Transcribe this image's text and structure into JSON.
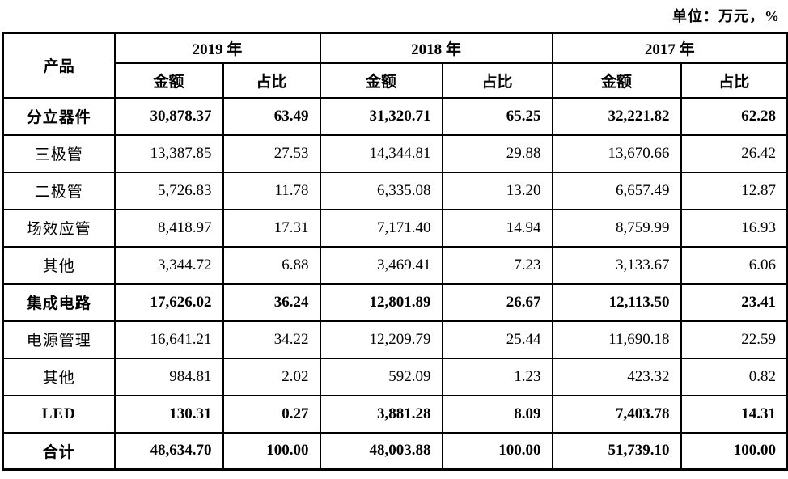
{
  "unit_note": "单位：万元，%",
  "colors": {
    "border": "#000000",
    "text": "#000000",
    "background": "#ffffff"
  },
  "table": {
    "product_header": "产品",
    "year_groups": [
      {
        "year": "2019 年",
        "amount_label": "金额",
        "ratio_label": "占比"
      },
      {
        "year": "2018 年",
        "amount_label": "金额",
        "ratio_label": "占比"
      },
      {
        "year": "2017 年",
        "amount_label": "金额",
        "ratio_label": "占比"
      }
    ],
    "rows": [
      {
        "label": "分立器件",
        "bold": true,
        "values": [
          "30,878.37",
          "63.49",
          "31,320.71",
          "65.25",
          "32,221.82",
          "62.28"
        ]
      },
      {
        "label": "三极管",
        "bold": false,
        "values": [
          "13,387.85",
          "27.53",
          "14,344.81",
          "29.88",
          "13,670.66",
          "26.42"
        ]
      },
      {
        "label": "二极管",
        "bold": false,
        "values": [
          "5,726.83",
          "11.78",
          "6,335.08",
          "13.20",
          "6,657.49",
          "12.87"
        ]
      },
      {
        "label": "场效应管",
        "bold": false,
        "values": [
          "8,418.97",
          "17.31",
          "7,171.40",
          "14.94",
          "8,759.99",
          "16.93"
        ]
      },
      {
        "label": "其他",
        "bold": false,
        "values": [
          "3,344.72",
          "6.88",
          "3,469.41",
          "7.23",
          "3,133.67",
          "6.06"
        ]
      },
      {
        "label": "集成电路",
        "bold": true,
        "values": [
          "17,626.02",
          "36.24",
          "12,801.89",
          "26.67",
          "12,113.50",
          "23.41"
        ]
      },
      {
        "label": "电源管理",
        "bold": false,
        "values": [
          "16,641.21",
          "34.22",
          "12,209.79",
          "25.44",
          "11,690.18",
          "22.59"
        ]
      },
      {
        "label": "其他",
        "bold": false,
        "values": [
          "984.81",
          "2.02",
          "592.09",
          "1.23",
          "423.32",
          "0.82"
        ]
      },
      {
        "label": "LED",
        "bold": true,
        "values": [
          "130.31",
          "0.27",
          "3,881.28",
          "8.09",
          "7,403.78",
          "14.31"
        ]
      },
      {
        "label": "合计",
        "bold": true,
        "values": [
          "48,634.70",
          "100.00",
          "48,003.88",
          "100.00",
          "51,739.10",
          "100.00"
        ]
      }
    ]
  }
}
